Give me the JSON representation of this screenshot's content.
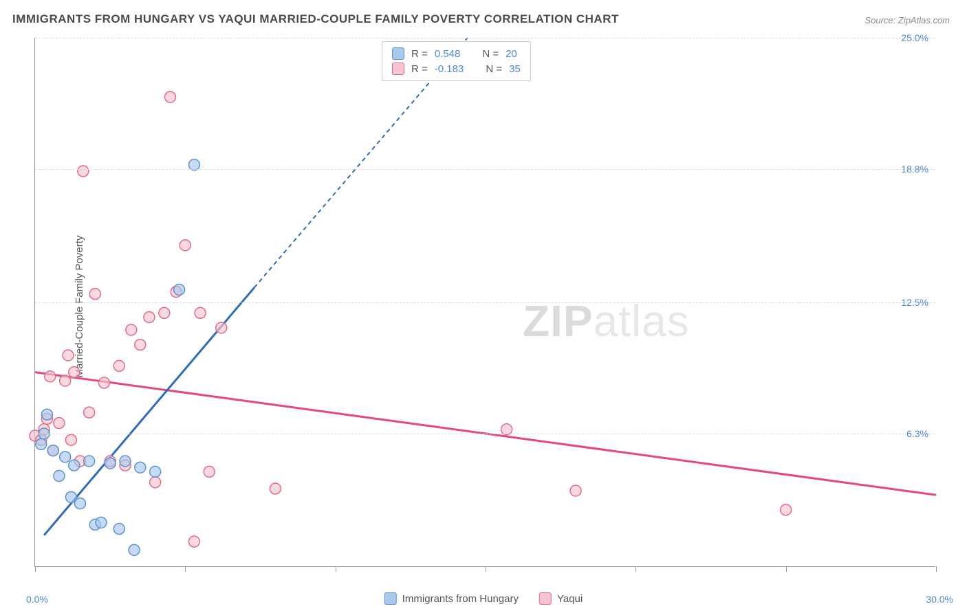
{
  "title": "IMMIGRANTS FROM HUNGARY VS YAQUI MARRIED-COUPLE FAMILY POVERTY CORRELATION CHART",
  "source_label": "Source: ZipAtlas.com",
  "y_axis_label": "Married-Couple Family Poverty",
  "chart": {
    "type": "scatter",
    "xlim": [
      0,
      30
    ],
    "ylim": [
      0,
      25
    ],
    "x_tick_positions": [
      0,
      5,
      10,
      15,
      20,
      25,
      30
    ],
    "y_grid": [
      {
        "value": 6.3,
        "label": "6.3%"
      },
      {
        "value": 12.5,
        "label": "12.5%"
      },
      {
        "value": 18.8,
        "label": "18.8%"
      },
      {
        "value": 25.0,
        "label": "25.0%"
      }
    ],
    "x_min_label": "0.0%",
    "x_max_label": "30.0%",
    "background_color": "#ffffff",
    "grid_color": "#dcdcdc",
    "axis_color": "#999999",
    "marker_radius": 8,
    "marker_stroke_width": 1.5,
    "trend_line_width": 3,
    "trend_dash_width": 2,
    "series": [
      {
        "name": "Immigrants from Hungary",
        "fill_color": "#a8c8ec",
        "stroke_color": "#5b93d0",
        "line_color": "#2e6bb8",
        "r_value": "0.548",
        "n_value": "20",
        "trend": {
          "x1": 0.3,
          "y1": 1.5,
          "x2": 7.3,
          "y2": 13.2
        },
        "trend_extrapolate": {
          "x1": 7.3,
          "y1": 13.2,
          "x2": 14.4,
          "y2": 25.0
        },
        "points": [
          {
            "x": 0.2,
            "y": 5.8
          },
          {
            "x": 0.3,
            "y": 6.3
          },
          {
            "x": 0.4,
            "y": 7.2
          },
          {
            "x": 0.6,
            "y": 5.5
          },
          {
            "x": 0.8,
            "y": 4.3
          },
          {
            "x": 1.0,
            "y": 5.2
          },
          {
            "x": 1.2,
            "y": 3.3
          },
          {
            "x": 1.3,
            "y": 4.8
          },
          {
            "x": 1.5,
            "y": 3.0
          },
          {
            "x": 1.8,
            "y": 5.0
          },
          {
            "x": 2.0,
            "y": 2.0
          },
          {
            "x": 2.2,
            "y": 2.1
          },
          {
            "x": 2.5,
            "y": 4.9
          },
          {
            "x": 2.8,
            "y": 1.8
          },
          {
            "x": 3.0,
            "y": 5.0
          },
          {
            "x": 3.3,
            "y": 0.8
          },
          {
            "x": 3.5,
            "y": 4.7
          },
          {
            "x": 4.0,
            "y": 4.5
          },
          {
            "x": 4.8,
            "y": 13.1
          },
          {
            "x": 5.3,
            "y": 19.0
          }
        ]
      },
      {
        "name": "Yaqui",
        "fill_color": "#f6c4d0",
        "stroke_color": "#e46a8b",
        "line_color": "#e6487a",
        "r_value": "-0.183",
        "n_value": "35",
        "trend": {
          "x1": 0.0,
          "y1": 9.2,
          "x2": 30.0,
          "y2": 3.4
        },
        "points": [
          {
            "x": 0.0,
            "y": 6.2
          },
          {
            "x": 0.2,
            "y": 6.0
          },
          {
            "x": 0.3,
            "y": 6.5
          },
          {
            "x": 0.5,
            "y": 9.0
          },
          {
            "x": 0.6,
            "y": 5.5
          },
          {
            "x": 0.8,
            "y": 6.8
          },
          {
            "x": 1.0,
            "y": 8.8
          },
          {
            "x": 1.2,
            "y": 6.0
          },
          {
            "x": 1.3,
            "y": 9.2
          },
          {
            "x": 1.5,
            "y": 5.0
          },
          {
            "x": 1.6,
            "y": 18.7
          },
          {
            "x": 1.8,
            "y": 7.3
          },
          {
            "x": 2.0,
            "y": 12.9
          },
          {
            "x": 2.3,
            "y": 8.7
          },
          {
            "x": 2.5,
            "y": 5.0
          },
          {
            "x": 2.8,
            "y": 9.5
          },
          {
            "x": 3.0,
            "y": 4.8
          },
          {
            "x": 3.2,
            "y": 11.2
          },
          {
            "x": 3.5,
            "y": 10.5
          },
          {
            "x": 3.8,
            "y": 11.8
          },
          {
            "x": 4.0,
            "y": 4.0
          },
          {
            "x": 4.3,
            "y": 12.0
          },
          {
            "x": 4.5,
            "y": 22.2
          },
          {
            "x": 4.7,
            "y": 13.0
          },
          {
            "x": 5.0,
            "y": 15.2
          },
          {
            "x": 5.3,
            "y": 1.2
          },
          {
            "x": 5.5,
            "y": 12.0
          },
          {
            "x": 5.8,
            "y": 4.5
          },
          {
            "x": 6.2,
            "y": 11.3
          },
          {
            "x": 8.0,
            "y": 3.7
          },
          {
            "x": 15.7,
            "y": 6.5
          },
          {
            "x": 18.0,
            "y": 3.6
          },
          {
            "x": 25.0,
            "y": 2.7
          },
          {
            "x": 0.4,
            "y": 7.0
          },
          {
            "x": 1.1,
            "y": 10.0
          }
        ]
      }
    ]
  },
  "legend": {
    "series1_label": "Immigrants from Hungary",
    "series2_label": "Yaqui"
  },
  "stats": {
    "r_label": "R =",
    "n_label": "N ="
  },
  "watermark": {
    "zip": "ZIP",
    "atlas": "atlas"
  }
}
